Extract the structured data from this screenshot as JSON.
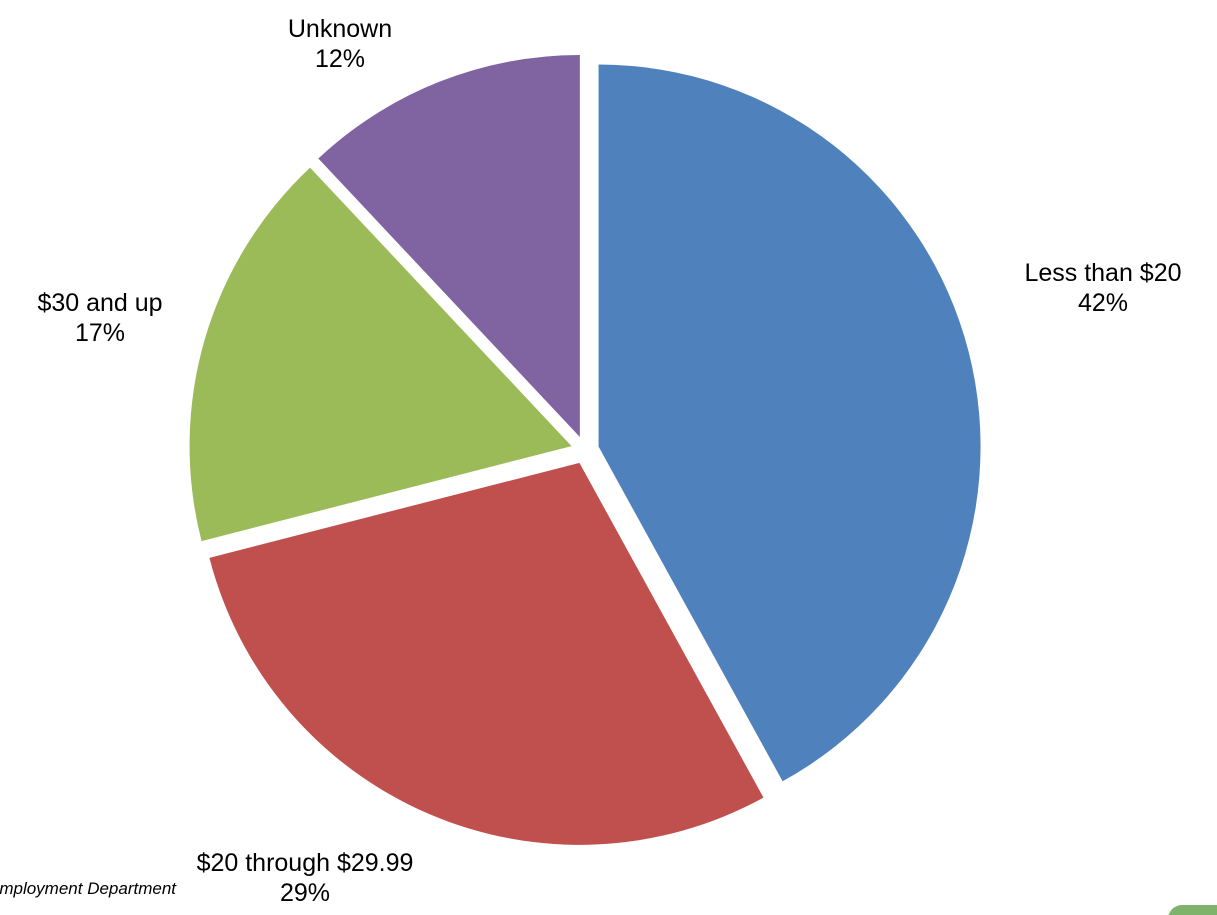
{
  "chart_data": {
    "type": "pie",
    "slices": [
      {
        "label": "Less than $20",
        "value": 42,
        "value_label": "42%",
        "color": "#4f81bd"
      },
      {
        "label": "$20 through $29.99",
        "value": 29,
        "value_label": "29%",
        "color": "#c0504d"
      },
      {
        "label": "$30 and up",
        "value": 17,
        "value_label": "17%",
        "color": "#9bbb59"
      },
      {
        "label": "Unknown",
        "value": 12,
        "value_label": "12%",
        "color": "#8064a2"
      }
    ],
    "start": "12 o'clock",
    "direction": "clockwise",
    "exploded": true
  },
  "source": "Employment Department",
  "corner_tab_color": "#7fb36b"
}
